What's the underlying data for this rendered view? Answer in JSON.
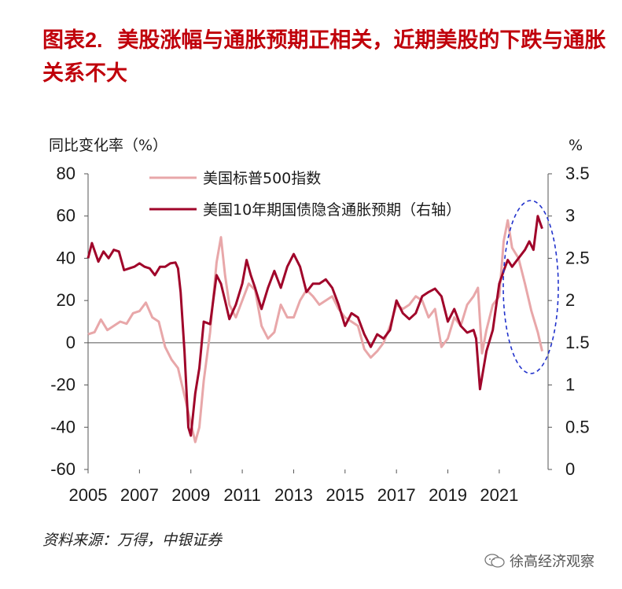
{
  "figure": {
    "title_prefix": "图表",
    "title_number": "2.",
    "title_text": "美股涨幅与通胀预期正相关，近期美股的下跌与通胀关系不大",
    "source": "资料来源：万得，中银证券",
    "watermark": "徐高经济观察"
  },
  "colors": {
    "title": "#c0000b",
    "series_sp500": "#e8a7a9",
    "series_breakeven": "#a0052a",
    "highlight_ellipse": "#2233cc"
  },
  "chart_data": {
    "type": "line",
    "y_left_label": "同比变化率（%）",
    "y_right_label": "%",
    "ylim_left": [
      -60,
      80
    ],
    "ylim_right": [
      0,
      3.5
    ],
    "yticks_left": [
      "80",
      "60",
      "40",
      "20",
      "0",
      "-20",
      "-40",
      "-60"
    ],
    "yticks_right": [
      "3.5",
      "3",
      "2.5",
      "2",
      "1.5",
      "1",
      "0.5",
      "0"
    ],
    "xticks": [
      "2005",
      "2007",
      "2009",
      "2011",
      "2013",
      "2015",
      "2017",
      "2019",
      "2021"
    ],
    "xlim": [
      2005.0,
      2022.9
    ],
    "legend_position": "top-left",
    "annotation": "dashed ellipse highlighting the 2021–2022 period",
    "series": [
      {
        "name": "美国标普500指数",
        "axis": "left",
        "x": [
          2005.0,
          2005.25,
          2005.5,
          2005.75,
          2006.0,
          2006.25,
          2006.5,
          2006.75,
          2007.0,
          2007.25,
          2007.5,
          2007.75,
          2008.0,
          2008.25,
          2008.5,
          2008.75,
          2009.0,
          2009.17,
          2009.33,
          2009.5,
          2009.75,
          2010.0,
          2010.17,
          2010.33,
          2010.5,
          2010.75,
          2011.0,
          2011.25,
          2011.5,
          2011.75,
          2012.0,
          2012.25,
          2012.5,
          2012.75,
          2013.0,
          2013.25,
          2013.5,
          2013.75,
          2014.0,
          2014.25,
          2014.5,
          2014.75,
          2015.0,
          2015.25,
          2015.5,
          2015.75,
          2016.0,
          2016.25,
          2016.5,
          2016.75,
          2017.0,
          2017.25,
          2017.5,
          2017.75,
          2018.0,
          2018.25,
          2018.5,
          2018.75,
          2019.0,
          2019.25,
          2019.5,
          2019.75,
          2020.0,
          2020.17,
          2020.33,
          2020.5,
          2020.75,
          2021.0,
          2021.17,
          2021.33,
          2021.5,
          2021.75,
          2022.0,
          2022.25,
          2022.5,
          2022.67
        ],
        "values": [
          4,
          5,
          11,
          6,
          8,
          10,
          9,
          14,
          15,
          19,
          12,
          10,
          -2,
          -8,
          -12,
          -25,
          -38,
          -47,
          -40,
          -18,
          5,
          38,
          50,
          32,
          18,
          12,
          20,
          28,
          25,
          8,
          2,
          5,
          18,
          12,
          12,
          20,
          25,
          22,
          18,
          20,
          22,
          16,
          12,
          10,
          8,
          -3,
          -7,
          -4,
          0,
          8,
          18,
          16,
          18,
          22,
          20,
          12,
          16,
          -2,
          2,
          12,
          8,
          18,
          22,
          26,
          -5,
          6,
          18,
          22,
          48,
          58,
          45,
          40,
          28,
          15,
          5,
          -4
        ]
      },
      {
        "name": "美国10年期国债隐含通胀预期（右轴）",
        "axis": "right",
        "x": [
          2005.0,
          2005.15,
          2005.4,
          2005.6,
          2005.8,
          2006.0,
          2006.2,
          2006.4,
          2006.6,
          2006.8,
          2007.0,
          2007.2,
          2007.4,
          2007.6,
          2007.8,
          2008.0,
          2008.2,
          2008.4,
          2008.5,
          2008.6,
          2008.75,
          2008.9,
          2009.0,
          2009.17,
          2009.33,
          2009.5,
          2009.75,
          2010.0,
          2010.17,
          2010.33,
          2010.5,
          2010.75,
          2011.0,
          2011.17,
          2011.33,
          2011.5,
          2011.75,
          2012.0,
          2012.25,
          2012.5,
          2012.75,
          2013.0,
          2013.25,
          2013.5,
          2013.75,
          2014.0,
          2014.25,
          2014.5,
          2014.75,
          2015.0,
          2015.25,
          2015.5,
          2015.75,
          2016.0,
          2016.25,
          2016.5,
          2016.75,
          2017.0,
          2017.25,
          2017.5,
          2017.75,
          2018.0,
          2018.25,
          2018.5,
          2018.75,
          2019.0,
          2019.25,
          2019.5,
          2019.75,
          2020.0,
          2020.1,
          2020.25,
          2020.5,
          2020.75,
          2021.0,
          2021.17,
          2021.33,
          2021.5,
          2021.75,
          2022.0,
          2022.17,
          2022.33,
          2022.5,
          2022.67
        ],
        "values": [
          2.5,
          2.68,
          2.46,
          2.58,
          2.5,
          2.6,
          2.58,
          2.36,
          2.38,
          2.4,
          2.44,
          2.4,
          2.38,
          2.3,
          2.4,
          2.4,
          2.44,
          2.45,
          2.38,
          2.1,
          1.4,
          0.5,
          0.4,
          0.9,
          1.2,
          1.75,
          1.72,
          2.3,
          2.2,
          2.0,
          1.78,
          1.95,
          2.2,
          2.48,
          2.3,
          2.15,
          1.9,
          2.15,
          2.35,
          2.15,
          2.4,
          2.55,
          2.4,
          2.1,
          2.2,
          2.2,
          2.25,
          2.15,
          1.95,
          1.7,
          1.85,
          1.8,
          1.6,
          1.45,
          1.6,
          1.55,
          1.65,
          2.0,
          1.85,
          1.78,
          1.85,
          2.05,
          2.1,
          2.14,
          2.05,
          1.75,
          1.9,
          1.7,
          1.62,
          1.65,
          1.55,
          0.95,
          1.4,
          1.65,
          2.2,
          2.35,
          2.48,
          2.4,
          2.5,
          2.6,
          2.7,
          2.6,
          3.0,
          2.85
        ]
      }
    ]
  }
}
